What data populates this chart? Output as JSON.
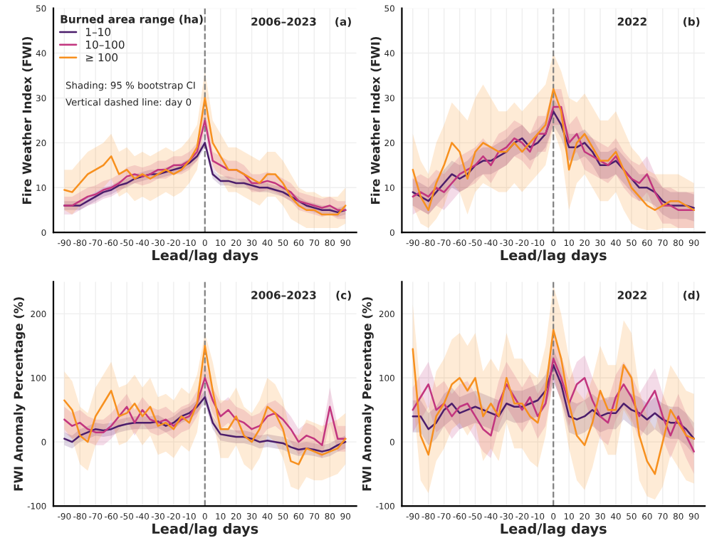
{
  "chart_data": [
    {
      "type": "line",
      "title": "2006–2023",
      "xlabel": "Lead/lag days",
      "ylabel": "Fire Weather Index (FWI)",
      "legend_title": "Burned area range (ha)",
      "legend": "top left",
      "grid": true,
      "annotations": [
        "(a)",
        "Shading: 95 % bootstrap CI",
        "Vertical dashed line: day 0"
      ],
      "x": [
        -90,
        -85,
        -80,
        -75,
        -70,
        -65,
        -60,
        -55,
        -50,
        -45,
        -40,
        -35,
        -30,
        -25,
        -20,
        -15,
        -10,
        -5,
        0,
        5,
        10,
        15,
        20,
        25,
        30,
        35,
        40,
        45,
        50,
        55,
        60,
        65,
        70,
        75,
        80,
        85,
        90
      ],
      "xlim": [
        -97,
        97
      ],
      "xticks": [
        -90,
        -80,
        -70,
        -60,
        -50,
        -40,
        -30,
        -20,
        -10,
        0,
        10,
        20,
        30,
        40,
        50,
        60,
        70,
        80,
        90
      ],
      "ylim": [
        0,
        50
      ],
      "yticks": [
        0,
        10,
        20,
        30,
        40,
        50
      ],
      "ref_lines": [
        {
          "axis": "x",
          "value": 0,
          "color": "#808080",
          "line_style": "dashed"
        }
      ],
      "series": [
        {
          "name": "1–10",
          "color": "#4b1d6b",
          "values": [
            6,
            6,
            6,
            7,
            8,
            9,
            9.5,
            10.5,
            11,
            12,
            12.5,
            13,
            13,
            13.5,
            14,
            14.5,
            15.5,
            17,
            20,
            13,
            11.5,
            11.5,
            11,
            11,
            10.5,
            10,
            10,
            9.5,
            9,
            8,
            7,
            6,
            5.5,
            5,
            5,
            4.5,
            5
          ],
          "lower": [
            5,
            5,
            5,
            6,
            7,
            8,
            8.5,
            9.5,
            10,
            11,
            11.5,
            12,
            12,
            12.5,
            13,
            13.5,
            14.5,
            16,
            19,
            12,
            10.5,
            10.5,
            10,
            10,
            9.5,
            9,
            9,
            8.5,
            8,
            7,
            6,
            5,
            4.5,
            4,
            4,
            3.5,
            4
          ],
          "upper": [
            7,
            7,
            7,
            8,
            9,
            10,
            10.5,
            11.5,
            12,
            13,
            13.5,
            14,
            14,
            14.5,
            15,
            15.5,
            16.5,
            18,
            21,
            14,
            12.5,
            12.5,
            12,
            12,
            11.5,
            11,
            11,
            10.5,
            10,
            9,
            8,
            7,
            6.5,
            6,
            6,
            5.5,
            6
          ]
        },
        {
          "name": "10–100",
          "color": "#c2357f",
          "values": [
            6,
            6,
            7,
            8,
            8.5,
            9.5,
            10,
            11,
            12.5,
            13,
            12.5,
            13,
            14,
            14,
            15,
            15,
            16,
            18,
            25,
            16,
            15,
            14,
            14,
            13,
            11,
            11,
            11.5,
            11,
            10,
            9,
            7,
            6.5,
            6,
            5.5,
            6,
            5,
            5
          ],
          "lower": [
            4,
            4,
            5,
            6,
            6.5,
            7.5,
            8,
            9,
            10.5,
            11,
            10.5,
            11,
            12,
            12,
            13,
            13,
            14,
            16,
            22,
            14,
            13,
            12,
            12,
            11,
            9,
            9,
            9.5,
            9,
            8,
            7,
            5,
            4.5,
            4,
            3.5,
            4,
            3,
            3
          ],
          "upper": [
            8,
            8,
            9,
            10,
            10.5,
            11.5,
            12,
            13,
            14.5,
            15,
            14.5,
            15,
            16,
            16,
            17,
            17,
            18,
            20,
            28,
            18,
            17,
            16,
            16,
            15,
            13,
            13,
            13.5,
            13,
            12,
            11,
            9,
            8.5,
            8,
            7.5,
            8,
            7,
            7
          ]
        },
        {
          "name": "≥ 100",
          "color": "#f7901e",
          "values": [
            9.5,
            9,
            11,
            13,
            14,
            15,
            17,
            13,
            14,
            12,
            13,
            12,
            13,
            14,
            13,
            14,
            16,
            19,
            30,
            20,
            17,
            14,
            14,
            13,
            12,
            11,
            13,
            13,
            11,
            8,
            6,
            5,
            5,
            4,
            4,
            4,
            6
          ],
          "lower": [
            5,
            4,
            6,
            8,
            9,
            10,
            12,
            8,
            9,
            7,
            8,
            7,
            8,
            9,
            8,
            9,
            11,
            14,
            24,
            15,
            12,
            9,
            9,
            8,
            7,
            6,
            8,
            8,
            6,
            3,
            2,
            1,
            1,
            1,
            1,
            1,
            2
          ],
          "upper": [
            14,
            14,
            16,
            18,
            19,
            20,
            22,
            18,
            19,
            17,
            18,
            17,
            18,
            19,
            18,
            19,
            21,
            24,
            36,
            25,
            22,
            19,
            19,
            18,
            17,
            16,
            18,
            18,
            16,
            13,
            10,
            9,
            9,
            8,
            8,
            8,
            10
          ]
        }
      ]
    },
    {
      "type": "line",
      "title": "2022",
      "xlabel": "Lead/lag days",
      "ylabel": "Fire Weather Index (FWI)",
      "grid": true,
      "annotations": [
        "(b)"
      ],
      "x": [
        -90,
        -85,
        -80,
        -75,
        -70,
        -65,
        -60,
        -55,
        -50,
        -45,
        -40,
        -35,
        -30,
        -25,
        -20,
        -15,
        -10,
        -5,
        0,
        5,
        10,
        15,
        20,
        25,
        30,
        35,
        40,
        45,
        50,
        55,
        60,
        65,
        70,
        75,
        80,
        85,
        90
      ],
      "xlim": [
        -97,
        97
      ],
      "xticks": [
        -90,
        -80,
        -70,
        -60,
        -50,
        -40,
        -30,
        -20,
        -10,
        0,
        10,
        20,
        30,
        40,
        50,
        60,
        70,
        80,
        90
      ],
      "ylim": [
        0,
        50
      ],
      "yticks": [
        0,
        10,
        20,
        30,
        40,
        50
      ],
      "ref_lines": [
        {
          "axis": "x",
          "value": 0,
          "color": "#808080",
          "line_style": "dashed"
        }
      ],
      "series": [
        {
          "color": "#4b1d6b",
          "values": [
            9,
            8,
            7,
            9,
            11,
            13,
            12,
            13,
            15,
            16,
            16,
            17,
            18,
            20,
            21,
            19,
            20,
            22,
            27,
            24,
            19,
            19,
            20,
            18,
            15,
            15,
            16,
            14,
            12,
            10,
            10,
            9,
            7,
            6,
            6,
            6,
            5.5
          ],
          "lower": [
            6,
            5,
            4,
            6,
            8,
            10,
            9,
            10,
            12,
            13,
            13,
            14,
            15,
            17,
            18,
            16,
            17,
            19,
            24,
            21,
            16,
            16,
            17,
            15,
            12,
            12,
            13,
            11,
            9,
            7,
            7,
            6,
            4,
            3,
            3,
            3,
            2.5
          ],
          "upper": [
            12,
            11,
            10,
            12,
            14,
            16,
            15,
            16,
            18,
            19,
            19,
            20,
            21,
            23,
            24,
            22,
            23,
            25,
            30,
            27,
            22,
            22,
            23,
            21,
            18,
            18,
            19,
            17,
            15,
            13,
            13,
            12,
            10,
            9,
            9,
            9,
            8.5
          ]
        },
        {
          "color": "#c2357f",
          "values": [
            8,
            9,
            8,
            10,
            9,
            11,
            13,
            14,
            15,
            17,
            15,
            18,
            19,
            21,
            20,
            18,
            22,
            22,
            28,
            28,
            20,
            22,
            18,
            17,
            16,
            15,
            17,
            14,
            12,
            11,
            13,
            9,
            6,
            6,
            5,
            5,
            5
          ],
          "lower": [
            4,
            5,
            4,
            6,
            5,
            7,
            9,
            10,
            11,
            13,
            11,
            14,
            15,
            17,
            16,
            14,
            18,
            18,
            24,
            24,
            16,
            18,
            14,
            13,
            12,
            11,
            13,
            10,
            8,
            7,
            9,
            5,
            2,
            2,
            1,
            1,
            1
          ],
          "upper": [
            12,
            13,
            12,
            14,
            13,
            15,
            17,
            18,
            19,
            21,
            19,
            22,
            23,
            25,
            24,
            22,
            26,
            26,
            32,
            32,
            24,
            26,
            22,
            21,
            20,
            19,
            21,
            18,
            16,
            15,
            17,
            13,
            10,
            10,
            9,
            9,
            9
          ]
        },
        {
          "color": "#f7901e",
          "values": [
            14,
            8,
            5,
            11,
            15,
            20,
            18,
            12,
            18,
            20,
            19,
            18,
            18,
            20,
            18,
            20,
            22,
            24,
            32,
            27,
            14,
            20,
            22,
            19,
            16,
            16,
            18,
            14,
            10,
            8,
            6,
            5,
            6,
            7,
            7,
            6,
            5
          ],
          "lower": [
            6,
            2,
            1,
            3,
            6,
            11,
            9,
            4,
            9,
            11,
            10,
            9,
            9,
            11,
            9,
            11,
            13,
            15,
            23,
            18,
            5,
            11,
            13,
            10,
            7,
            7,
            9,
            5,
            2,
            1,
            0.5,
            0.5,
            1,
            1,
            1,
            1,
            1
          ],
          "upper": [
            22,
            16,
            13,
            20,
            24,
            29,
            27,
            25,
            30,
            33,
            30,
            27,
            27,
            29,
            27,
            29,
            31,
            33,
            40,
            36,
            30,
            29,
            31,
            28,
            25,
            25,
            27,
            23,
            19,
            17,
            14,
            13,
            13,
            13,
            13,
            12,
            11
          ]
        }
      ]
    },
    {
      "type": "line",
      "title": "2006–2023",
      "xlabel": "Lead/lag days",
      "ylabel": "FWI Anomaly Percentage (%)",
      "grid": true,
      "annotations": [
        "(c)"
      ],
      "x": [
        -90,
        -85,
        -80,
        -75,
        -70,
        -65,
        -60,
        -55,
        -50,
        -45,
        -40,
        -35,
        -30,
        -25,
        -20,
        -15,
        -10,
        -5,
        0,
        5,
        10,
        15,
        20,
        25,
        30,
        35,
        40,
        45,
        50,
        55,
        60,
        65,
        70,
        75,
        80,
        85,
        90
      ],
      "xlim": [
        -97,
        97
      ],
      "xticks": [
        -90,
        -80,
        -70,
        -60,
        -50,
        -40,
        -30,
        -20,
        -10,
        0,
        10,
        20,
        30,
        40,
        50,
        60,
        70,
        80,
        90
      ],
      "ylim": [
        -100,
        250
      ],
      "yticks": [
        -100,
        0,
        100,
        200
      ],
      "ref_lines": [
        {
          "axis": "x",
          "value": 0,
          "color": "#808080",
          "line_style": "dashed"
        }
      ],
      "series": [
        {
          "color": "#4b1d6b",
          "values": [
            5,
            0,
            10,
            15,
            20,
            18,
            20,
            25,
            28,
            30,
            30,
            30,
            32,
            25,
            30,
            40,
            45,
            55,
            70,
            30,
            12,
            10,
            8,
            8,
            5,
            0,
            2,
            0,
            -2,
            -8,
            -12,
            -10,
            -12,
            -15,
            -12,
            -5,
            0
          ],
          "lower": [
            -5,
            -10,
            0,
            5,
            10,
            8,
            10,
            15,
            18,
            20,
            20,
            20,
            22,
            15,
            20,
            30,
            35,
            45,
            60,
            20,
            2,
            0,
            -2,
            -2,
            -5,
            -10,
            -8,
            -10,
            -12,
            -18,
            -22,
            -20,
            -22,
            -25,
            -22,
            -15,
            -10
          ],
          "upper": [
            15,
            10,
            20,
            25,
            30,
            28,
            30,
            35,
            38,
            40,
            40,
            40,
            42,
            35,
            40,
            50,
            55,
            65,
            80,
            40,
            22,
            20,
            18,
            18,
            15,
            10,
            12,
            10,
            8,
            2,
            -2,
            0,
            -2,
            -5,
            -2,
            5,
            10
          ]
        },
        {
          "color": "#c2357f",
          "values": [
            35,
            25,
            30,
            20,
            15,
            15,
            25,
            40,
            55,
            30,
            50,
            35,
            30,
            35,
            25,
            35,
            40,
            60,
            100,
            65,
            40,
            50,
            35,
            30,
            20,
            25,
            40,
            45,
            35,
            20,
            0,
            10,
            5,
            -5,
            55,
            5,
            5
          ],
          "lower": [
            15,
            5,
            10,
            0,
            -5,
            -5,
            5,
            20,
            35,
            10,
            30,
            15,
            10,
            15,
            5,
            15,
            20,
            40,
            75,
            45,
            20,
            30,
            15,
            10,
            0,
            5,
            20,
            25,
            15,
            0,
            -20,
            -10,
            -15,
            -25,
            30,
            -15,
            -15
          ],
          "upper": [
            55,
            45,
            50,
            40,
            35,
            35,
            45,
            60,
            75,
            50,
            70,
            55,
            50,
            55,
            45,
            55,
            60,
            80,
            125,
            85,
            60,
            70,
            55,
            50,
            40,
            45,
            60,
            65,
            55,
            40,
            20,
            30,
            25,
            15,
            85,
            25,
            25
          ]
        },
        {
          "color": "#f7901e",
          "values": [
            65,
            50,
            10,
            0,
            40,
            60,
            80,
            40,
            45,
            60,
            40,
            55,
            25,
            30,
            20,
            40,
            30,
            60,
            150,
            80,
            20,
            20,
            40,
            10,
            0,
            20,
            55,
            45,
            20,
            -30,
            -35,
            -10,
            -15,
            -20,
            -15,
            -10,
            5
          ],
          "lower": [
            20,
            5,
            -35,
            -45,
            -5,
            15,
            35,
            -5,
            0,
            15,
            -5,
            10,
            -20,
            -15,
            -25,
            -5,
            -15,
            15,
            100,
            35,
            -25,
            -25,
            -5,
            -35,
            -45,
            -25,
            10,
            0,
            -25,
            -70,
            -75,
            -55,
            -60,
            -60,
            -55,
            -50,
            -35
          ],
          "upper": [
            110,
            95,
            55,
            45,
            85,
            105,
            125,
            85,
            90,
            105,
            85,
            100,
            70,
            75,
            65,
            85,
            75,
            105,
            170,
            125,
            65,
            65,
            85,
            55,
            45,
            65,
            100,
            90,
            65,
            15,
            10,
            35,
            30,
            25,
            30,
            35,
            45
          ]
        }
      ]
    },
    {
      "type": "line",
      "title": "2022",
      "xlabel": "Lead/lag days",
      "ylabel": "FWI Anomaly Percentage (%)",
      "grid": true,
      "annotations": [
        "(d)"
      ],
      "x": [
        -90,
        -85,
        -80,
        -75,
        -70,
        -65,
        -60,
        -55,
        -50,
        -45,
        -40,
        -35,
        -30,
        -25,
        -20,
        -15,
        -10,
        -5,
        0,
        5,
        10,
        15,
        20,
        25,
        30,
        35,
        40,
        45,
        50,
        55,
        60,
        65,
        70,
        75,
        80,
        85,
        90
      ],
      "xlim": [
        -97,
        97
      ],
      "xticks": [
        -90,
        -80,
        -70,
        -60,
        -50,
        -40,
        -30,
        -20,
        -10,
        0,
        10,
        20,
        30,
        40,
        50,
        60,
        70,
        80,
        90
      ],
      "ylim": [
        -100,
        250
      ],
      "yticks": [
        -100,
        0,
        100,
        200
      ],
      "ref_lines": [
        {
          "axis": "x",
          "value": 0,
          "color": "#808080",
          "line_style": "dashed"
        }
      ],
      "series": [
        {
          "color": "#4b1d6b",
          "values": [
            40,
            40,
            20,
            30,
            50,
            60,
            45,
            50,
            55,
            50,
            45,
            40,
            60,
            55,
            55,
            60,
            65,
            80,
            120,
            90,
            40,
            35,
            40,
            50,
            40,
            45,
            45,
            60,
            50,
            45,
            35,
            45,
            35,
            30,
            30,
            20,
            5
          ],
          "lower": [
            15,
            15,
            -5,
            5,
            25,
            35,
            20,
            25,
            30,
            25,
            20,
            15,
            35,
            30,
            30,
            35,
            40,
            55,
            95,
            65,
            15,
            10,
            15,
            25,
            15,
            20,
            20,
            35,
            25,
            20,
            10,
            20,
            10,
            5,
            5,
            -5,
            -20
          ],
          "upper": [
            65,
            65,
            45,
            55,
            75,
            85,
            70,
            75,
            80,
            75,
            70,
            65,
            85,
            80,
            80,
            85,
            90,
            105,
            145,
            115,
            65,
            60,
            65,
            75,
            65,
            70,
            70,
            85,
            75,
            70,
            60,
            70,
            60,
            55,
            55,
            45,
            30
          ]
        },
        {
          "color": "#c2357f",
          "values": [
            50,
            70,
            90,
            50,
            60,
            40,
            55,
            60,
            40,
            20,
            10,
            60,
            90,
            70,
            50,
            70,
            40,
            60,
            130,
            100,
            60,
            90,
            100,
            65,
            40,
            30,
            70,
            90,
            70,
            40,
            60,
            80,
            40,
            10,
            40,
            10,
            -15
          ],
          "lower": [
            15,
            35,
            55,
            15,
            25,
            5,
            20,
            25,
            5,
            -15,
            -25,
            25,
            55,
            35,
            15,
            35,
            5,
            25,
            95,
            65,
            25,
            55,
            65,
            30,
            5,
            -5,
            35,
            55,
            35,
            5,
            25,
            45,
            5,
            -25,
            5,
            -25,
            -50
          ],
          "upper": [
            85,
            105,
            125,
            85,
            95,
            75,
            90,
            95,
            75,
            55,
            45,
            95,
            125,
            105,
            85,
            105,
            75,
            95,
            165,
            135,
            95,
            125,
            135,
            100,
            75,
            65,
            105,
            125,
            105,
            75,
            95,
            115,
            75,
            45,
            75,
            45,
            20
          ]
        },
        {
          "color": "#f7901e",
          "values": [
            145,
            10,
            -20,
            40,
            60,
            90,
            100,
            80,
            100,
            40,
            60,
            40,
            100,
            60,
            60,
            40,
            30,
            80,
            175,
            130,
            60,
            10,
            -5,
            30,
            80,
            50,
            50,
            120,
            100,
            10,
            -30,
            -50,
            0,
            50,
            30,
            10,
            5
          ],
          "lower": [
            75,
            -60,
            -80,
            -30,
            -10,
            20,
            30,
            10,
            30,
            -30,
            -10,
            -30,
            30,
            -10,
            -10,
            -30,
            -40,
            10,
            105,
            60,
            -10,
            -60,
            -75,
            -40,
            10,
            -20,
            -20,
            50,
            30,
            -60,
            -85,
            -90,
            -70,
            -20,
            -40,
            -60,
            -65
          ],
          "upper": [
            215,
            80,
            50,
            110,
            130,
            160,
            170,
            150,
            170,
            110,
            130,
            110,
            170,
            130,
            130,
            110,
            100,
            150,
            245,
            200,
            130,
            80,
            65,
            100,
            150,
            120,
            120,
            190,
            170,
            80,
            40,
            20,
            70,
            120,
            100,
            80,
            75
          ]
        }
      ]
    }
  ]
}
